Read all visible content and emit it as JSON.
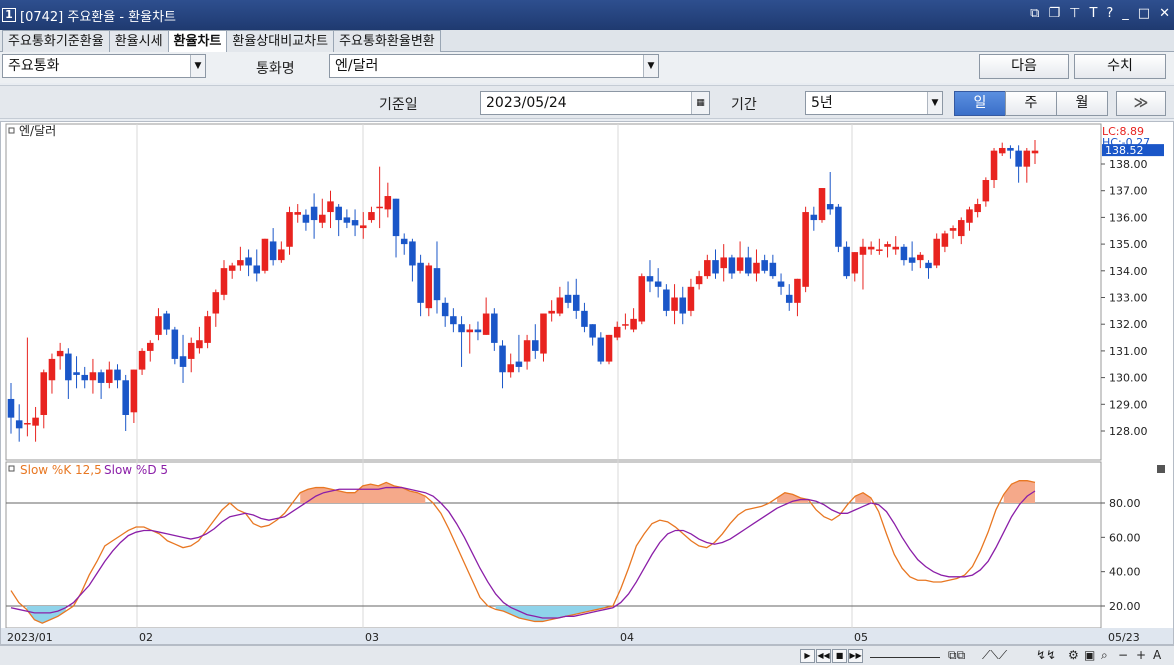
{
  "window": {
    "number": "1",
    "title": "[0742] 주요환율 - 환율차트"
  },
  "tabs": [
    "주요통화기준환율",
    "환율시세",
    "환율차트",
    "환율상대비교차트",
    "주요통화환율변환"
  ],
  "active_tab": 2,
  "form": {
    "currency_group": "주요통화",
    "currency_label": "통화명",
    "currency_value": "엔/달러",
    "next_button": "다음",
    "values_button": "수치",
    "base_date_label": "기준일",
    "base_date_value": "2023/05/24",
    "period_label": "기간",
    "period_value": "5년",
    "period_buttons": [
      "일",
      "주",
      "월"
    ],
    "active_period": 0,
    "forward_button": "≫"
  },
  "icons": {
    "calendar": "calendar-icon",
    "dropdown": "chevron-down-icon"
  },
  "colors": {
    "up": "#e8231f",
    "down": "#1a56c8",
    "k_line": "#e87722",
    "d_line": "#8b1fa8",
    "fill_over": "#f5a98a",
    "fill_under": "#8fd3ea"
  },
  "chart_data": [
    {
      "type": "candlestick",
      "title": "엔/달러",
      "overlay_labels": {
        "lc": "LC:8.89",
        "hc": "HC:-0.27"
      },
      "last_price": "138.52",
      "y_ticks": [
        "128.00",
        "129.00",
        "130.00",
        "131.00",
        "132.00",
        "133.00",
        "134.00",
        "135.00",
        "136.00",
        "137.00",
        "138.00"
      ],
      "ylim": [
        127.25,
        139.3
      ],
      "x_labels": [
        "2023/01",
        "02",
        "03",
        "04",
        "05",
        "05/23"
      ],
      "candles": [
        [
          129.2,
          128.5,
          129.8,
          127.9
        ],
        [
          128.4,
          128.1,
          129.0,
          127.6
        ],
        [
          128.3,
          128.3,
          131.5,
          127.8
        ],
        [
          128.2,
          128.5,
          128.9,
          127.6
        ],
        [
          128.6,
          130.2,
          130.3,
          128.1
        ],
        [
          129.9,
          130.7,
          130.9,
          129.4
        ],
        [
          130.8,
          131.0,
          131.3,
          130.3
        ],
        [
          130.9,
          129.9,
          131.1,
          129.2
        ],
        [
          130.2,
          130.1,
          130.8,
          129.6
        ],
        [
          130.1,
          129.9,
          130.4,
          129.6
        ],
        [
          129.9,
          130.2,
          130.7,
          129.4
        ],
        [
          130.2,
          129.8,
          130.3,
          129.2
        ],
        [
          129.8,
          130.3,
          130.6,
          129.6
        ],
        [
          130.3,
          129.9,
          130.5,
          129.6
        ],
        [
          129.9,
          128.6,
          130.1,
          128.0
        ],
        [
          128.7,
          130.3,
          130.3,
          128.3
        ],
        [
          130.3,
          131.0,
          131.1,
          130.1
        ],
        [
          131.0,
          131.3,
          131.4,
          130.6
        ],
        [
          131.6,
          132.3,
          132.6,
          131.4
        ],
        [
          132.4,
          131.8,
          132.5,
          131.6
        ],
        [
          131.8,
          130.7,
          131.9,
          130.5
        ],
        [
          130.8,
          130.4,
          131.6,
          129.8
        ],
        [
          130.7,
          131.3,
          131.5,
          130.2
        ],
        [
          131.1,
          131.4,
          131.9,
          130.9
        ],
        [
          131.3,
          132.3,
          132.5,
          131.1
        ],
        [
          132.4,
          133.2,
          133.3,
          131.9
        ],
        [
          133.1,
          134.1,
          134.4,
          132.9
        ],
        [
          134.0,
          134.2,
          134.3,
          133.7
        ],
        [
          134.2,
          134.4,
          134.9,
          134.0
        ],
        [
          134.5,
          134.2,
          134.8,
          133.8
        ],
        [
          134.2,
          133.9,
          134.8,
          133.6
        ],
        [
          134.0,
          135.2,
          135.2,
          133.9
        ],
        [
          135.1,
          134.4,
          135.6,
          134.2
        ],
        [
          134.4,
          134.8,
          135.1,
          134.3
        ],
        [
          134.9,
          136.2,
          136.4,
          134.6
        ],
        [
          136.1,
          136.2,
          136.5,
          135.8
        ],
        [
          136.1,
          135.8,
          136.3,
          135.5
        ],
        [
          136.4,
          135.9,
          136.9,
          135.2
        ],
        [
          135.8,
          136.1,
          136.7,
          135.6
        ],
        [
          136.2,
          136.6,
          137.0,
          135.6
        ],
        [
          136.4,
          135.9,
          136.5,
          135.3
        ],
        [
          136.0,
          135.8,
          136.3,
          135.6
        ],
        [
          135.9,
          135.7,
          136.3,
          135.3
        ],
        [
          135.6,
          135.7,
          136.2,
          135.2
        ],
        [
          135.9,
          136.2,
          136.4,
          135.8
        ],
        [
          136.4,
          136.4,
          137.9,
          135.6
        ],
        [
          136.3,
          136.8,
          137.3,
          136.0
        ],
        [
          136.7,
          135.3,
          136.7,
          134.5
        ],
        [
          135.2,
          135.0,
          135.4,
          134.6
        ],
        [
          135.1,
          134.2,
          135.2,
          133.6
        ],
        [
          134.3,
          132.8,
          134.6,
          132.3
        ],
        [
          132.6,
          134.2,
          134.3,
          132.3
        ],
        [
          134.1,
          132.9,
          135.1,
          132.4
        ],
        [
          132.8,
          132.3,
          133.0,
          131.9
        ],
        [
          132.3,
          132.0,
          132.6,
          131.7
        ],
        [
          132.0,
          131.7,
          132.3,
          130.4
        ],
        [
          131.7,
          131.8,
          132.0,
          130.9
        ],
        [
          131.8,
          131.7,
          132.1,
          131.4
        ],
        [
          131.6,
          132.4,
          133.0,
          131.6
        ],
        [
          132.4,
          131.3,
          132.6,
          131.0
        ],
        [
          131.2,
          130.2,
          131.4,
          129.6
        ],
        [
          130.2,
          130.5,
          130.9,
          130.0
        ],
        [
          130.6,
          130.4,
          131.6,
          130.2
        ],
        [
          130.6,
          131.4,
          131.6,
          130.3
        ],
        [
          131.4,
          131.0,
          132.0,
          130.7
        ],
        [
          130.9,
          132.4,
          132.4,
          130.6
        ],
        [
          132.4,
          132.5,
          132.9,
          132.1
        ],
        [
          132.4,
          133.0,
          133.4,
          132.3
        ],
        [
          133.1,
          132.8,
          133.6,
          132.6
        ],
        [
          133.1,
          132.5,
          133.7,
          132.2
        ],
        [
          132.5,
          131.9,
          132.8,
          131.7
        ],
        [
          132.0,
          131.5,
          132.0,
          131.2
        ],
        [
          131.5,
          130.6,
          131.7,
          130.5
        ],
        [
          130.6,
          131.6,
          131.6,
          130.5
        ],
        [
          131.5,
          131.9,
          132.1,
          131.4
        ],
        [
          132.0,
          132.0,
          132.4,
          131.8
        ],
        [
          131.8,
          132.2,
          132.6,
          131.7
        ],
        [
          132.1,
          133.8,
          133.9,
          132.0
        ],
        [
          133.8,
          133.6,
          134.4,
          133.2
        ],
        [
          133.6,
          133.4,
          134.1,
          133.0
        ],
        [
          133.3,
          132.5,
          133.5,
          132.3
        ],
        [
          132.5,
          133.0,
          133.5,
          132.0
        ],
        [
          133.0,
          132.4,
          133.4,
          132.0
        ],
        [
          132.5,
          133.4,
          133.7,
          132.3
        ],
        [
          133.5,
          133.8,
          134.0,
          133.3
        ],
        [
          133.8,
          134.4,
          134.6,
          133.7
        ],
        [
          134.4,
          133.9,
          134.8,
          133.7
        ],
        [
          134.1,
          134.5,
          135.0,
          133.6
        ],
        [
          134.5,
          133.9,
          134.6,
          133.7
        ],
        [
          134.0,
          134.5,
          135.1,
          133.9
        ],
        [
          134.5,
          133.9,
          134.9,
          133.8
        ],
        [
          133.9,
          134.3,
          134.8,
          133.6
        ],
        [
          134.4,
          134.0,
          134.6,
          133.9
        ],
        [
          134.3,
          133.8,
          134.6,
          133.7
        ],
        [
          133.6,
          133.4,
          133.9,
          133.1
        ],
        [
          133.1,
          132.8,
          133.5,
          132.5
        ],
        [
          132.8,
          133.7,
          133.7,
          132.3
        ],
        [
          133.4,
          136.2,
          136.4,
          133.2
        ],
        [
          136.1,
          135.9,
          136.4,
          135.5
        ],
        [
          135.9,
          137.1,
          137.1,
          135.8
        ],
        [
          136.5,
          136.3,
          137.7,
          136.1
        ],
        [
          136.4,
          134.9,
          136.5,
          134.7
        ],
        [
          134.9,
          133.8,
          135.1,
          133.7
        ],
        [
          133.9,
          134.7,
          134.7,
          133.6
        ],
        [
          134.6,
          134.9,
          135.2,
          133.3
        ],
        [
          134.8,
          134.9,
          135.1,
          134.6
        ],
        [
          134.8,
          134.8,
          135.2,
          134.6
        ],
        [
          134.9,
          135.0,
          135.1,
          134.5
        ],
        [
          134.8,
          134.9,
          135.3,
          134.6
        ],
        [
          134.9,
          134.4,
          135.0,
          134.2
        ],
        [
          134.5,
          134.3,
          135.1,
          134.0
        ],
        [
          134.4,
          134.6,
          134.7,
          134.1
        ],
        [
          134.3,
          134.1,
          134.4,
          133.7
        ],
        [
          134.2,
          135.2,
          135.4,
          134.1
        ],
        [
          134.9,
          135.4,
          135.5,
          134.7
        ],
        [
          135.5,
          135.6,
          135.7,
          135.2
        ],
        [
          135.3,
          135.9,
          136.0,
          135.0
        ],
        [
          135.8,
          136.3,
          136.4,
          135.5
        ],
        [
          136.2,
          136.5,
          136.7,
          136.0
        ],
        [
          136.6,
          137.4,
          137.5,
          136.4
        ],
        [
          137.4,
          138.5,
          138.6,
          137.1
        ],
        [
          138.4,
          138.6,
          138.8,
          138.3
        ],
        [
          138.6,
          138.5,
          138.7,
          138.2
        ],
        [
          138.5,
          137.9,
          138.7,
          137.3
        ],
        [
          137.9,
          138.5,
          138.6,
          137.3
        ],
        [
          138.4,
          138.5,
          138.9,
          138.0
        ]
      ]
    },
    {
      "type": "line",
      "title_parts": [
        "Slow %K 12,5",
        "Slow %D 5"
      ],
      "y_ticks": [
        "20.00",
        "40.00",
        "60.00",
        "80.00"
      ],
      "ylim": [
        7,
        100
      ],
      "reference_lines": [
        20,
        80
      ],
      "series": [
        {
          "name": "Slow %K 12,5",
          "values": [
            29,
            22,
            18,
            12,
            10,
            12,
            14,
            17,
            20,
            28,
            38,
            46,
            55,
            58,
            61,
            64,
            66,
            66,
            64,
            62,
            58,
            56,
            54,
            55,
            58,
            64,
            70,
            76,
            80,
            76,
            74,
            68,
            66,
            67,
            70,
            74,
            80,
            86,
            88,
            89,
            89,
            88,
            87,
            86,
            86,
            90,
            91,
            90,
            92,
            90,
            89,
            87,
            86,
            84,
            80,
            74,
            65,
            55,
            45,
            35,
            25,
            20,
            18,
            17,
            15,
            13,
            12,
            11,
            11,
            12,
            13,
            14,
            15,
            16,
            17,
            18,
            19,
            20,
            30,
            42,
            55,
            62,
            68,
            70,
            69,
            66,
            62,
            58,
            55,
            54,
            57,
            62,
            68,
            73,
            76,
            77,
            78,
            80,
            83,
            86,
            85,
            83,
            82,
            76,
            72,
            70,
            73,
            79,
            84,
            86,
            83,
            75,
            62,
            50,
            42,
            37,
            35,
            35,
            34,
            34,
            35,
            36,
            38,
            43,
            52,
            63,
            76,
            85,
            91,
            93,
            93,
            92
          ]
        },
        {
          "name": "Slow %D 5",
          "values": [
            19,
            18,
            17,
            16,
            16,
            16,
            17,
            19,
            22,
            27,
            32,
            39,
            46,
            52,
            57,
            61,
            63,
            64,
            64,
            63,
            62,
            61,
            60,
            59,
            60,
            62,
            65,
            69,
            72,
            73,
            74,
            73,
            71,
            70,
            71,
            72,
            75,
            78,
            81,
            84,
            86,
            87,
            88,
            88,
            88,
            88,
            88,
            88,
            89,
            89,
            89,
            88,
            87,
            86,
            84,
            80,
            75,
            68,
            60,
            51,
            42,
            34,
            27,
            22,
            19,
            17,
            15,
            14,
            13,
            13,
            13,
            14,
            14,
            15,
            16,
            17,
            18,
            19,
            22,
            27,
            34,
            42,
            50,
            57,
            62,
            64,
            64,
            62,
            59,
            57,
            56,
            57,
            59,
            62,
            65,
            68,
            71,
            74,
            77,
            79,
            81,
            82,
            82,
            81,
            79,
            76,
            74,
            74,
            76,
            78,
            80,
            79,
            75,
            68,
            60,
            53,
            47,
            43,
            40,
            38,
            37,
            37,
            37,
            38,
            41,
            46,
            54,
            63,
            72,
            79,
            84,
            87
          ]
        }
      ]
    }
  ]
}
